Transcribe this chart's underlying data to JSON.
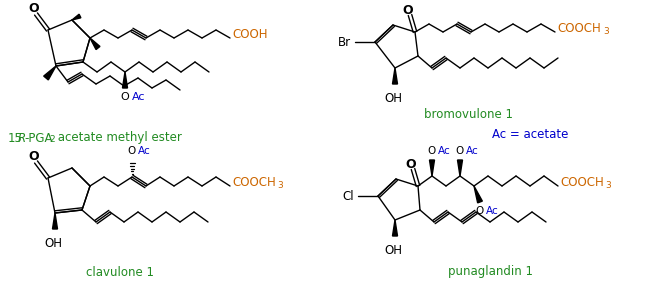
{
  "bg": "#ffffff",
  "black": "#000000",
  "green": "#228B22",
  "blue": "#0000CC",
  "orange": "#CC6600",
  "figsize": [
    6.67,
    2.85
  ],
  "dpi": 100,
  "tl_label_parts": [
    "15",
    "R",
    "-PGA",
    "2",
    " acetate methyl ester"
  ],
  "tr_label": "bromovulone 1",
  "bl_label": "clavulone 1",
  "br_label": "punaglandin 1",
  "ac_note": "Ac = acetate"
}
